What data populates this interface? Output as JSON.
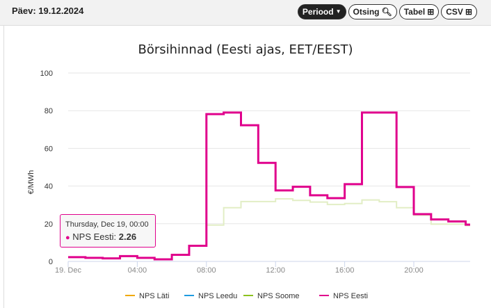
{
  "header": {
    "date": "Päev: 19.12.2024",
    "buttons": [
      "Periood",
      "Otsing",
      "Tabel",
      "CSV"
    ]
  },
  "tooltip": {
    "title": "Thursday, Dec 19, 00:00",
    "series": "NPS Eesti:",
    "value": "2.26"
  },
  "chart_data": {
    "type": "line",
    "title": "Börsihinnad (Eesti ajas, EET/EEST)",
    "ylabel": "€/MWh",
    "xlabel": "",
    "ylim": [
      0,
      100
    ],
    "yticks": [
      0,
      20,
      40,
      60,
      80,
      100
    ],
    "xticks": [
      {
        "hour": 0,
        "label": "19. Dec"
      },
      {
        "hour": 4,
        "label": "04:00"
      },
      {
        "hour": 8,
        "label": "08:00"
      },
      {
        "hour": 12,
        "label": "12:00"
      },
      {
        "hour": 16,
        "label": "16:00"
      },
      {
        "hour": 20,
        "label": "20:00"
      }
    ],
    "x": [
      0,
      1,
      2,
      3,
      4,
      5,
      6,
      7,
      8,
      9,
      10,
      11,
      12,
      13,
      14,
      15,
      16,
      17,
      18,
      19,
      20,
      21,
      22,
      23
    ],
    "series": [
      {
        "name": "NPS Läti",
        "color": "#f0a800",
        "values": [
          2.26,
          1.9,
          1.6,
          2.8,
          1.9,
          1.1,
          3.5,
          8.3,
          78.2,
          79,
          72.3,
          52.3,
          37.7,
          39.6,
          35.1,
          33.6,
          41,
          79,
          79,
          39.5,
          25.1,
          22.3,
          21.2,
          19.5
        ]
      },
      {
        "name": "NPS Leedu",
        "color": "#1e9be0",
        "values": [
          2.26,
          1.9,
          1.6,
          2.8,
          1.9,
          1.1,
          3.5,
          8.3,
          78.2,
          79,
          72.3,
          52.3,
          37.7,
          39.6,
          35.1,
          33.6,
          41,
          79,
          79,
          39.5,
          25.1,
          22.3,
          21.2,
          19.5
        ]
      },
      {
        "name": "NPS Soome",
        "color": "#8cc21e",
        "values": [
          2.26,
          1.9,
          1.6,
          2.8,
          1.9,
          1.1,
          3.5,
          8.3,
          19.3,
          28.5,
          31.8,
          31.8,
          33.2,
          32.4,
          31.5,
          30.2,
          30.7,
          32.6,
          31.7,
          28.5,
          24.5,
          19.8,
          19.8,
          19
        ]
      },
      {
        "name": "NPS Eesti",
        "color": "#e0008c",
        "values": [
          2.26,
          1.9,
          1.6,
          2.8,
          1.9,
          1.1,
          3.5,
          8.3,
          78.2,
          79,
          72.3,
          52.3,
          37.7,
          39.6,
          35.1,
          33.6,
          41,
          79,
          79,
          39.5,
          25.1,
          22.3,
          21.2,
          19.5
        ]
      }
    ],
    "legend": "bottom-center",
    "grid": true,
    "step": true
  }
}
